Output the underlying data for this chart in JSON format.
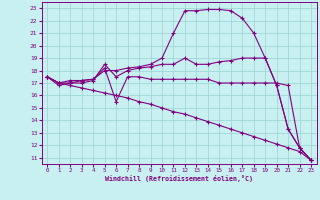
{
  "xlabel": "Windchill (Refroidissement éolien,°C)",
  "background_color": "#c8f0f0",
  "grid_color": "#a0d8d8",
  "line_color": "#800080",
  "x_ticks": [
    0,
    1,
    2,
    3,
    4,
    5,
    6,
    7,
    8,
    9,
    10,
    11,
    12,
    13,
    14,
    15,
    16,
    17,
    18,
    19,
    20,
    21,
    22,
    23
  ],
  "y_ticks": [
    11,
    12,
    13,
    14,
    15,
    16,
    17,
    18,
    19,
    20,
    21,
    22,
    23
  ],
  "ylim": [
    10.5,
    23.5
  ],
  "xlim": [
    -0.5,
    23.5
  ],
  "series": [
    {
      "x": [
        0,
        1,
        2,
        3,
        4,
        5,
        6,
        7,
        8,
        9,
        10,
        11,
        12,
        13,
        14,
        15,
        16,
        17,
        18,
        19,
        20,
        21,
        22,
        23
      ],
      "y": [
        17.5,
        17.0,
        16.8,
        16.6,
        16.4,
        16.2,
        16.0,
        15.8,
        15.5,
        15.3,
        15.0,
        14.7,
        14.5,
        14.2,
        13.9,
        13.6,
        13.3,
        13.0,
        12.7,
        12.4,
        12.1,
        11.8,
        11.5,
        10.8
      ]
    },
    {
      "x": [
        0,
        1,
        2,
        3,
        4,
        5,
        6,
        7,
        8,
        9,
        10,
        11,
        12,
        13,
        14,
        15,
        16,
        17,
        18,
        19,
        20,
        21,
        22,
        23
      ],
      "y": [
        17.5,
        17.0,
        17.2,
        17.2,
        17.3,
        18.0,
        18.0,
        18.2,
        18.3,
        18.5,
        19.0,
        21.0,
        22.8,
        22.8,
        22.9,
        22.9,
        22.8,
        22.2,
        21.0,
        19.0,
        16.8,
        13.3,
        11.8,
        10.8
      ]
    },
    {
      "x": [
        0,
        1,
        2,
        3,
        4,
        5,
        6,
        7,
        8,
        9,
        10,
        11,
        12,
        13,
        14,
        15,
        16,
        17,
        18,
        19,
        20,
        21,
        22,
        23
      ],
      "y": [
        17.5,
        16.8,
        17.0,
        17.0,
        17.2,
        18.5,
        17.5,
        18.0,
        18.2,
        18.3,
        18.5,
        18.5,
        19.0,
        18.5,
        18.5,
        18.7,
        18.8,
        19.0,
        19.0,
        19.0,
        16.8,
        13.3,
        11.8,
        10.8
      ]
    },
    {
      "x": [
        0,
        1,
        2,
        3,
        4,
        5,
        6,
        7,
        8,
        9,
        10,
        11,
        12,
        13,
        14,
        15,
        16,
        17,
        18,
        19,
        20,
        21,
        22,
        23
      ],
      "y": [
        17.5,
        17.0,
        17.0,
        17.2,
        17.3,
        18.2,
        15.5,
        17.5,
        17.5,
        17.3,
        17.3,
        17.3,
        17.3,
        17.3,
        17.3,
        17.0,
        17.0,
        17.0,
        17.0,
        17.0,
        17.0,
        16.8,
        11.8,
        10.8
      ]
    }
  ]
}
